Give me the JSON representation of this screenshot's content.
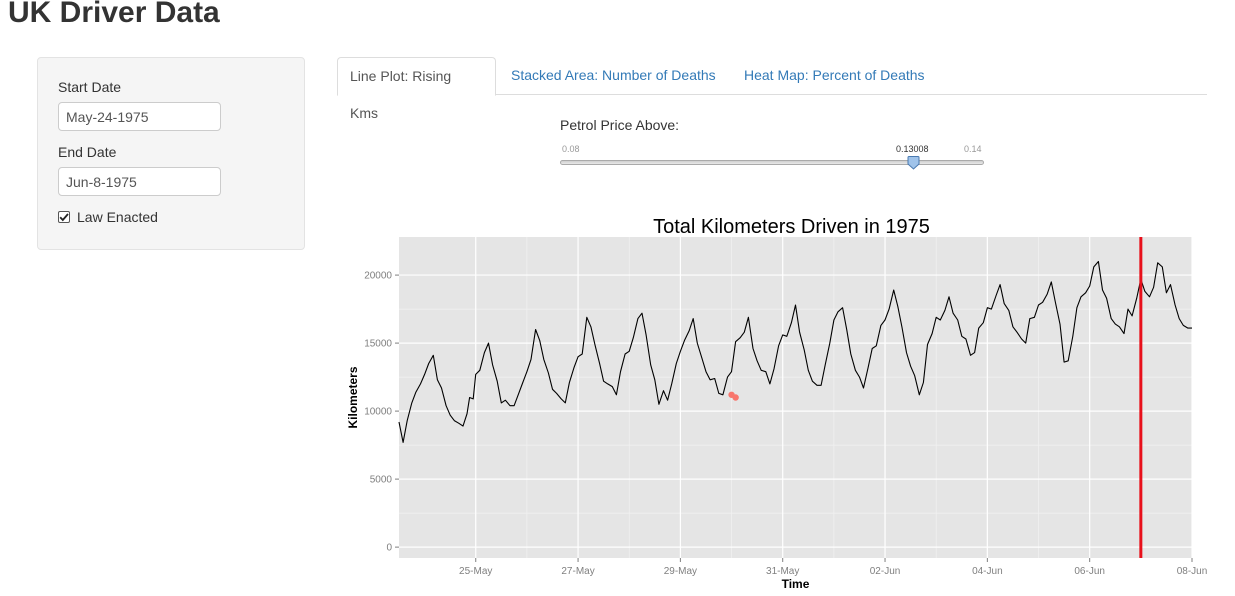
{
  "app": {
    "title": "UK Driver Data"
  },
  "sidebar": {
    "start_date_label": "Start Date",
    "start_date_value": "May-24-1975",
    "end_date_label": "End Date",
    "end_date_value": "Jun-8-1975",
    "law_enacted_label": "Law Enacted",
    "law_enacted_checked": true
  },
  "tabs": [
    {
      "label": "Line Plot: Rising Kms",
      "active": true
    },
    {
      "label": "Stacked Area: Number of Deaths",
      "active": false
    },
    {
      "label": "Heat Map: Percent of Deaths",
      "active": false
    }
  ],
  "slider": {
    "label": "Petrol Price Above:",
    "min": 0.08,
    "max": 0.14,
    "min_label": "0.08",
    "max_label": "0.14",
    "value": 0.13008,
    "value_label": "0.13008"
  },
  "colors": {
    "link": "#337ab7",
    "panel_bg": "#e5e5e5",
    "line": "#000000",
    "law_line": "#e8101b",
    "highlight_points": "#f8766d"
  },
  "chart_data": {
    "type": "line",
    "title": "Total Kilometers Driven in 1975",
    "xlabel": "Time",
    "ylabel": "Kilometers",
    "xlim": [
      23.5,
      39
    ],
    "ylim": [
      -800,
      22800
    ],
    "x_ticks": [
      25,
      27,
      29,
      31,
      33,
      35,
      37,
      39
    ],
    "x_tick_labels": [
      "25-May",
      "27-May",
      "29-May",
      "31-May",
      "02-Jun",
      "04-Jun",
      "06-Jun",
      "08-Jun"
    ],
    "y_ticks": [
      0,
      5000,
      10000,
      15000,
      20000
    ],
    "y_tick_labels": [
      "0",
      "5000",
      "10000",
      "15000",
      "20000"
    ],
    "grid": true,
    "law_enacted_x": 38.0,
    "series": [
      {
        "points": [
          [
            23.5,
            9200
          ],
          [
            23.58,
            7700
          ],
          [
            23.66,
            9300
          ],
          [
            23.75,
            10600
          ],
          [
            23.83,
            11400
          ],
          [
            23.92,
            12000
          ],
          [
            24.0,
            12700
          ],
          [
            24.08,
            13500
          ],
          [
            24.17,
            14100
          ],
          [
            24.25,
            12300
          ],
          [
            24.33,
            11700
          ],
          [
            24.42,
            10400
          ],
          [
            24.5,
            9700
          ],
          [
            24.58,
            9300
          ],
          [
            24.67,
            9100
          ],
          [
            24.75,
            8900
          ],
          [
            24.83,
            9800
          ],
          [
            24.88,
            11000
          ],
          [
            24.95,
            10900
          ],
          [
            25.0,
            12700
          ],
          [
            25.08,
            13000
          ],
          [
            25.17,
            14300
          ],
          [
            25.25,
            15000
          ],
          [
            25.33,
            13400
          ],
          [
            25.42,
            12200
          ],
          [
            25.5,
            10600
          ],
          [
            25.58,
            10800
          ],
          [
            25.67,
            10400
          ],
          [
            25.75,
            10400
          ],
          [
            25.83,
            11200
          ],
          [
            25.92,
            12100
          ],
          [
            26.0,
            12900
          ],
          [
            26.08,
            13800
          ],
          [
            26.17,
            16000
          ],
          [
            26.25,
            15200
          ],
          [
            26.33,
            13800
          ],
          [
            26.42,
            12800
          ],
          [
            26.5,
            11600
          ],
          [
            26.58,
            11300
          ],
          [
            26.67,
            10900
          ],
          [
            26.75,
            10600
          ],
          [
            26.83,
            12100
          ],
          [
            26.92,
            13200
          ],
          [
            27.0,
            14000
          ],
          [
            27.08,
            14200
          ],
          [
            27.17,
            16900
          ],
          [
            27.25,
            16200
          ],
          [
            27.33,
            14900
          ],
          [
            27.42,
            13500
          ],
          [
            27.5,
            12200
          ],
          [
            27.58,
            12000
          ],
          [
            27.67,
            11800
          ],
          [
            27.75,
            11200
          ],
          [
            27.83,
            12900
          ],
          [
            27.92,
            14200
          ],
          [
            28.0,
            14400
          ],
          [
            28.08,
            15400
          ],
          [
            28.17,
            16800
          ],
          [
            28.25,
            17200
          ],
          [
            28.33,
            15600
          ],
          [
            28.42,
            13400
          ],
          [
            28.5,
            12300
          ],
          [
            28.58,
            10500
          ],
          [
            28.67,
            11500
          ],
          [
            28.75,
            10800
          ],
          [
            28.83,
            12000
          ],
          [
            28.92,
            13500
          ],
          [
            29.0,
            14400
          ],
          [
            29.08,
            15200
          ],
          [
            29.17,
            15900
          ],
          [
            29.25,
            16800
          ],
          [
            29.33,
            15000
          ],
          [
            29.42,
            13900
          ],
          [
            29.5,
            12900
          ],
          [
            29.58,
            12300
          ],
          [
            29.67,
            12400
          ],
          [
            29.75,
            11300
          ],
          [
            29.83,
            11200
          ],
          [
            29.92,
            12500
          ],
          [
            30.0,
            12900
          ],
          [
            30.08,
            15100
          ],
          [
            30.17,
            15400
          ],
          [
            30.25,
            15800
          ],
          [
            30.33,
            16900
          ],
          [
            30.42,
            14600
          ],
          [
            30.5,
            13700
          ],
          [
            30.58,
            13000
          ],
          [
            30.67,
            12900
          ],
          [
            30.75,
            12000
          ],
          [
            30.83,
            13100
          ],
          [
            30.92,
            14800
          ],
          [
            31.0,
            15600
          ],
          [
            31.08,
            15500
          ],
          [
            31.17,
            16500
          ],
          [
            31.25,
            17800
          ],
          [
            31.33,
            15800
          ],
          [
            31.42,
            14500
          ],
          [
            31.5,
            13000
          ],
          [
            31.58,
            12200
          ],
          [
            31.67,
            11900
          ],
          [
            31.75,
            11900
          ],
          [
            31.83,
            13400
          ],
          [
            31.92,
            15000
          ],
          [
            32.0,
            16700
          ],
          [
            32.08,
            17300
          ],
          [
            32.17,
            17600
          ],
          [
            32.25,
            16000
          ],
          [
            32.33,
            14200
          ],
          [
            32.42,
            13000
          ],
          [
            32.5,
            12500
          ],
          [
            32.58,
            11700
          ],
          [
            32.67,
            13200
          ],
          [
            32.75,
            14600
          ],
          [
            32.83,
            14800
          ],
          [
            32.92,
            16300
          ],
          [
            33.0,
            16700
          ],
          [
            33.08,
            17500
          ],
          [
            33.17,
            18900
          ],
          [
            33.25,
            17700
          ],
          [
            33.33,
            16200
          ],
          [
            33.42,
            14300
          ],
          [
            33.5,
            13300
          ],
          [
            33.58,
            12600
          ],
          [
            33.67,
            11200
          ],
          [
            33.75,
            12100
          ],
          [
            33.83,
            14900
          ],
          [
            33.92,
            15700
          ],
          [
            34.0,
            16900
          ],
          [
            34.08,
            16700
          ],
          [
            34.17,
            17400
          ],
          [
            34.25,
            18400
          ],
          [
            34.33,
            17200
          ],
          [
            34.42,
            16700
          ],
          [
            34.5,
            15500
          ],
          [
            34.58,
            15300
          ],
          [
            34.67,
            14100
          ],
          [
            34.75,
            14300
          ],
          [
            34.83,
            16100
          ],
          [
            34.92,
            16500
          ],
          [
            35.0,
            17600
          ],
          [
            35.08,
            17500
          ],
          [
            35.17,
            18500
          ],
          [
            35.25,
            19300
          ],
          [
            35.33,
            17900
          ],
          [
            35.42,
            17400
          ],
          [
            35.5,
            16200
          ],
          [
            35.58,
            15800
          ],
          [
            35.67,
            15300
          ],
          [
            35.75,
            15000
          ],
          [
            35.83,
            16800
          ],
          [
            35.92,
            16900
          ],
          [
            36.0,
            17800
          ],
          [
            36.08,
            18000
          ],
          [
            36.17,
            18600
          ],
          [
            36.25,
            19500
          ],
          [
            36.33,
            18000
          ],
          [
            36.42,
            16400
          ],
          [
            36.5,
            13600
          ],
          [
            36.58,
            13700
          ],
          [
            36.67,
            15500
          ],
          [
            36.75,
            17600
          ],
          [
            36.83,
            18400
          ],
          [
            36.92,
            18700
          ],
          [
            37.0,
            19200
          ],
          [
            37.08,
            20600
          ],
          [
            37.17,
            21000
          ],
          [
            37.25,
            18900
          ],
          [
            37.33,
            18300
          ],
          [
            37.42,
            16800
          ],
          [
            37.5,
            16400
          ],
          [
            37.58,
            16200
          ],
          [
            37.67,
            15700
          ],
          [
            37.75,
            17500
          ],
          [
            37.83,
            17000
          ],
          [
            37.92,
            18300
          ],
          [
            38.0,
            19700
          ],
          [
            38.08,
            18800
          ],
          [
            38.17,
            18400
          ],
          [
            38.25,
            19100
          ],
          [
            38.33,
            20900
          ],
          [
            38.42,
            20600
          ],
          [
            38.5,
            18700
          ],
          [
            38.58,
            19300
          ],
          [
            38.67,
            17800
          ],
          [
            38.75,
            16800
          ],
          [
            38.83,
            16300
          ],
          [
            38.92,
            16100
          ],
          [
            39.0,
            16100
          ]
        ]
      }
    ],
    "highlight_points": [
      [
        30.0,
        11200
      ],
      [
        30.08,
        11000
      ]
    ]
  }
}
